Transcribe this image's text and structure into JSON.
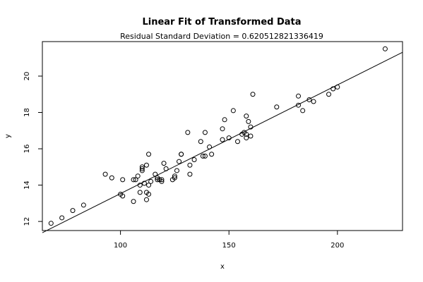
{
  "chart_data": {
    "type": "scatter",
    "title": "Linear Fit of Transformed Data",
    "subtitle": "Residual Standard Deviation =  0.620512821336419",
    "xlabel": "x",
    "ylabel": "y",
    "xlim": [
      64,
      230
    ],
    "ylim": [
      11.5,
      21.9
    ],
    "xticks": [
      100,
      150,
      200
    ],
    "yticks": [
      12,
      14,
      16,
      18,
      20
    ],
    "grid": false,
    "legend": "none",
    "colors": {
      "points": "#000000",
      "fit_line": "#000000",
      "axes": "#000000"
    },
    "fit_line": {
      "x": [
        64,
        230
      ],
      "y": [
        11.38,
        21.31
      ]
    },
    "points": {
      "x": [
        68,
        73,
        78,
        83,
        93,
        96,
        100,
        101,
        101,
        106,
        106,
        107,
        108,
        109,
        109,
        110,
        110,
        110,
        111,
        112,
        112,
        112,
        113,
        113,
        113,
        114,
        116,
        117,
        117,
        118,
        119,
        119,
        120,
        121,
        124,
        125,
        125,
        126,
        127,
        128,
        128,
        131,
        132,
        132,
        134,
        137,
        138,
        139,
        139,
        141,
        142,
        147,
        147,
        148,
        150,
        152,
        154,
        156,
        157,
        158,
        158,
        158,
        159,
        160,
        160,
        161,
        172,
        182,
        182,
        184,
        187,
        189,
        196,
        198,
        200,
        222
      ],
      "y": [
        11.9,
        12.2,
        12.6,
        12.9,
        14.6,
        14.4,
        13.5,
        14.3,
        13.4,
        13.1,
        14.3,
        14.3,
        14.5,
        13.6,
        14.0,
        14.8,
        14.9,
        15.0,
        14.1,
        13.2,
        13.6,
        15.1,
        14.0,
        13.5,
        15.7,
        14.2,
        14.6,
        14.4,
        14.3,
        14.3,
        14.3,
        14.2,
        15.2,
        14.9,
        14.3,
        14.5,
        14.4,
        14.8,
        15.3,
        15.7,
        15.7,
        16.9,
        15.1,
        14.6,
        15.4,
        16.4,
        15.6,
        16.9,
        15.6,
        16.1,
        15.7,
        16.5,
        17.1,
        17.6,
        16.6,
        18.1,
        16.4,
        16.8,
        16.9,
        17.8,
        16.8,
        16.6,
        17.5,
        16.7,
        17.2,
        19.0,
        18.3,
        18.9,
        18.4,
        18.1,
        18.7,
        18.6,
        19.0,
        19.3,
        19.4,
        21.5
      ]
    }
  }
}
